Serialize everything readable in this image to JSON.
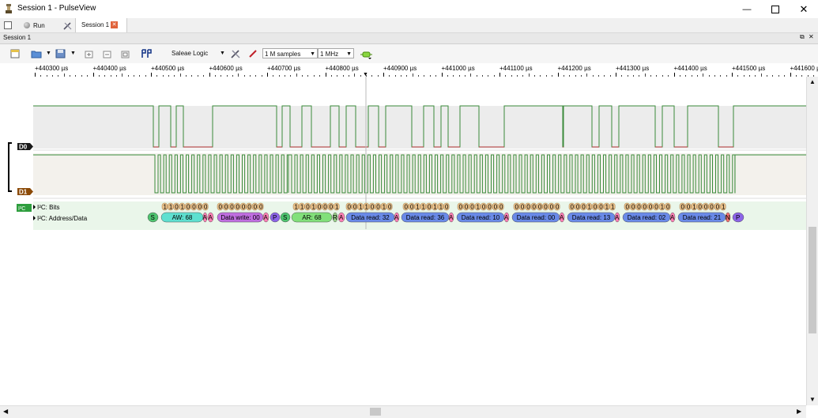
{
  "window": {
    "title": "Session 1 - PulseView",
    "icons": {
      "app": "pulseview-icon",
      "minimize": "minimize-icon",
      "maximize": "maximize-icon",
      "close": "close-icon"
    }
  },
  "session_tabs": {
    "run_label": "Run",
    "tab_label": "Session 1",
    "icons": {
      "new_session": "new-session-icon",
      "run": "run-icon",
      "settings": "settings-icon",
      "close_tab": "close-tab-icon"
    }
  },
  "session_bar": {
    "label": "Session 1",
    "icons": {
      "float": "float-icon",
      "close": "close-icon"
    }
  },
  "toolbar": {
    "device": "Saleae Logic",
    "samples": "1 M samples",
    "samplerate": "1 MHz",
    "icons": [
      "new-view-icon",
      "open-icon",
      "save-icon",
      "zoom-in-icon",
      "zoom-out-icon",
      "zoom-fit-icon",
      "cursor-icon",
      "device-settings-icon",
      "probe-icon",
      "decoder-icon"
    ]
  },
  "ruler": {
    "labels": [
      "+440300 µs",
      "+440400 µs",
      "+440500 µs",
      "+440600 µs",
      "+440700 µs",
      "+440800 µs",
      "+440900 µs",
      "+441000 µs",
      "+441100 µs",
      "+441200 µs",
      "+441300 µs",
      "+441400 µs",
      "+441500 µs",
      "+441600 µs"
    ]
  },
  "channels": [
    {
      "name": "D0",
      "color": "#1a1a1a"
    },
    {
      "name": "D1",
      "color": "#8b4a07"
    }
  ],
  "decoder": {
    "badge": "I²C",
    "badge_color": "#2e9e3e",
    "rows": [
      "I²C: Bits",
      "I²C: Address/Data"
    ],
    "bit_groups": [
      "11010000",
      "00000000",
      "11010001",
      "00110010",
      "00110110",
      "00010000",
      "00000000",
      "00010011",
      "00000010",
      "00100001"
    ],
    "annotations": [
      "S",
      "AW: 68",
      "A",
      "A",
      "Data write: 00",
      "A",
      "P",
      "S",
      "AR: 68",
      "R",
      "A",
      "Data read: 32",
      "A",
      "Data read: 36",
      "A",
      "Data read: 10",
      "A",
      "Data read: 00",
      "A",
      "Data read: 13",
      "A",
      "Data read: 02",
      "A",
      "Data read: 21",
      "N",
      "P"
    ],
    "colors": {
      "start": "#4ec46f",
      "address_write": "#5ee0d0",
      "ack": "#ff7fb5",
      "data_write": "#c06ee0",
      "stop": "#8c64e8",
      "address_read": "#82e07a",
      "read_bit": "#9ad08a",
      "data_read": "#6a8ae8",
      "nack": "#f07070",
      "bits": "#e8c08a"
    }
  }
}
